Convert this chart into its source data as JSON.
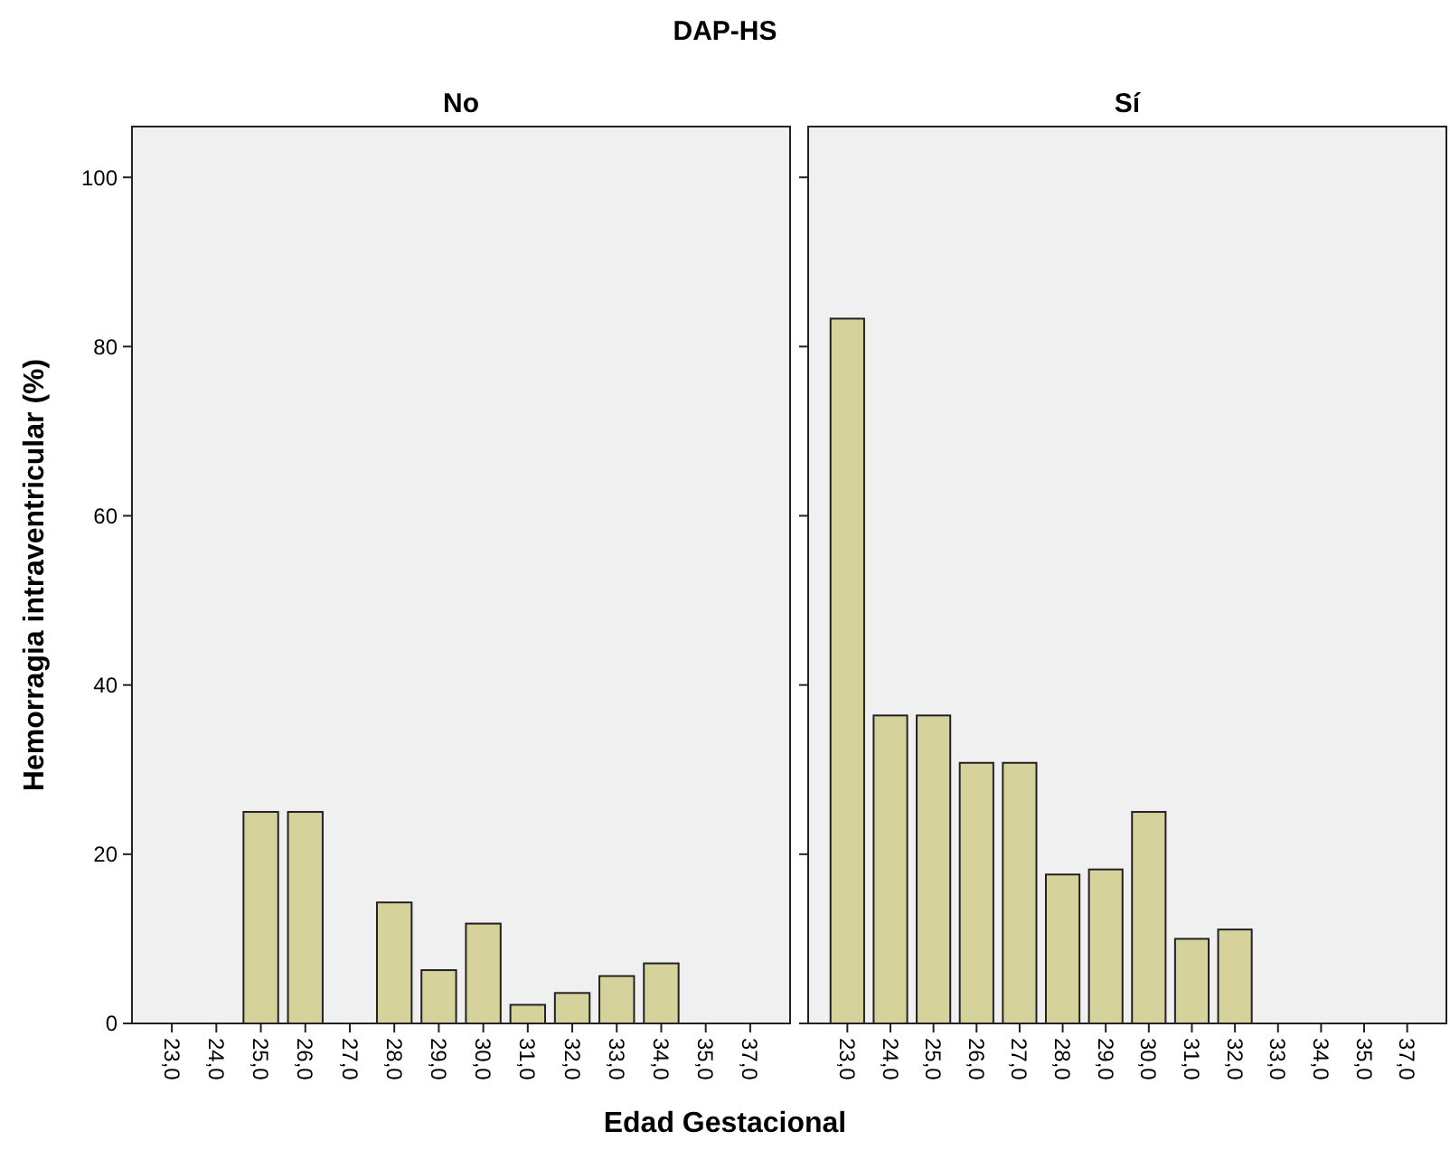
{
  "chart_data": [
    {
      "type": "bar",
      "title": "DAP-HS",
      "subtitle": "No",
      "xlabel": "Edad Gestacional",
      "ylabel": "Hemorragia intraventricular (%)",
      "categories": [
        "23,0",
        "24,0",
        "25,0",
        "26,0",
        "27,0",
        "28,0",
        "29,0",
        "30,0",
        "31,0",
        "32,0",
        "33,0",
        "34,0",
        "35,0",
        "37,0"
      ],
      "values": [
        null,
        0,
        25,
        25,
        0,
        14.3,
        6.3,
        11.8,
        2.2,
        3.6,
        5.6,
        7.1,
        0,
        0
      ],
      "color": "#d6d29c",
      "ylim": [
        0,
        106
      ],
      "yticks": [
        0,
        20,
        40,
        60,
        80,
        100
      ],
      "grid": false
    },
    {
      "type": "bar",
      "subtitle": "Sí",
      "categories": [
        "23,0",
        "24,0",
        "25,0",
        "26,0",
        "27,0",
        "28,0",
        "29,0",
        "30,0",
        "31,0",
        "32,0",
        "33,0",
        "34,0",
        "35,0",
        "37,0"
      ],
      "values": [
        83.3,
        36.4,
        36.4,
        30.8,
        30.8,
        17.6,
        18.2,
        25,
        10,
        11.1,
        null,
        null,
        null,
        null
      ],
      "color": "#d6d29c",
      "ylim": [
        0,
        106
      ],
      "yticks": [
        0,
        20,
        40,
        60,
        80,
        100
      ],
      "grid": false,
      "tick_labels": "x"
    }
  ]
}
